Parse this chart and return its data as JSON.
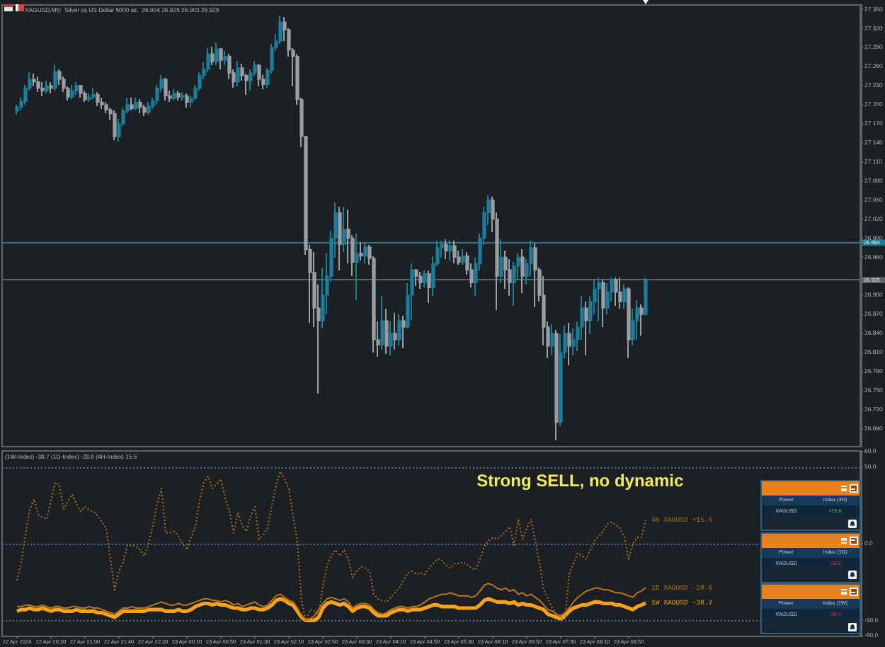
{
  "chart_data": [
    {
      "type": "candlestick",
      "title": "XAGUSD,M5:  Silver vs US Dollar 5000 oz.  26.904 26.925 26.903 26.925",
      "tick_labels": "y",
      "categories": [
        null,
        null,
        null,
        null,
        null,
        null,
        null,
        null,
        null,
        null,
        null,
        null,
        null,
        null,
        null,
        null,
        null,
        null,
        null,
        null,
        null,
        null,
        null,
        null,
        null,
        null,
        null,
        null,
        null,
        null,
        null,
        null,
        null,
        null,
        null,
        null,
        null,
        null,
        null,
        null,
        null,
        null,
        null,
        null,
        null,
        null,
        null,
        null,
        null,
        null,
        null,
        null,
        null,
        null,
        null,
        null,
        null,
        null,
        null,
        null,
        null,
        null,
        null,
        null,
        null,
        null,
        null,
        null,
        null,
        null,
        null,
        null,
        null,
        null,
        null,
        null,
        null,
        null,
        null,
        null,
        null,
        null,
        null,
        null,
        null,
        null,
        null,
        null,
        null,
        null,
        null,
        null,
        null,
        null,
        null,
        null,
        null,
        null,
        null,
        null,
        null,
        null,
        null,
        null,
        null,
        null,
        null,
        null,
        null,
        null,
        null,
        null,
        null,
        null,
        null,
        null,
        null,
        null,
        null,
        null,
        null,
        null,
        null,
        null,
        null,
        null,
        null,
        null,
        null,
        null,
        null,
        null,
        null,
        null,
        null,
        null,
        null,
        null,
        null,
        null,
        null,
        null,
        null,
        null,
        null,
        null,
        null,
        null,
        null,
        null,
        null,
        null,
        null,
        null,
        null,
        null,
        null,
        null,
        null,
        null,
        null,
        null,
        null,
        null,
        null,
        null,
        null,
        null,
        null,
        null,
        null,
        null,
        null,
        null,
        null,
        null,
        null,
        null,
        null,
        null,
        null,
        null,
        null,
        null,
        null,
        null,
        null,
        null,
        null,
        null,
        null,
        null,
        null,
        null,
        null,
        null,
        null,
        null,
        null,
        null,
        null,
        null
      ],
      "ohlc": [
        null,
        null,
        null,
        [
          27.19,
          27.2,
          27.185,
          27.196
        ],
        [
          27.196,
          27.21,
          27.192,
          27.205
        ],
        [
          27.205,
          27.232,
          27.2,
          27.226
        ],
        [
          27.226,
          27.252,
          27.222,
          27.24
        ],
        [
          27.24,
          27.25,
          27.228,
          27.236
        ],
        [
          27.236,
          27.244,
          27.22,
          27.226
        ],
        [
          27.226,
          27.236,
          27.214,
          27.222
        ],
        [
          27.222,
          27.238,
          27.218,
          27.23
        ],
        [
          27.23,
          27.236,
          27.218,
          27.226
        ],
        [
          27.226,
          27.262,
          27.222,
          27.252
        ],
        [
          27.252,
          27.256,
          27.232,
          27.24
        ],
        [
          27.24,
          27.244,
          27.22,
          27.226
        ],
        [
          27.226,
          27.23,
          27.206,
          27.212
        ],
        [
          27.212,
          27.232,
          27.208,
          27.222
        ],
        [
          27.222,
          27.236,
          27.216,
          27.23
        ],
        [
          27.23,
          27.232,
          27.212,
          27.218
        ],
        [
          27.218,
          27.222,
          27.204,
          27.208
        ],
        [
          27.208,
          27.218,
          27.204,
          27.212
        ],
        [
          27.212,
          27.226,
          27.208,
          27.216
        ],
        [
          27.216,
          27.22,
          27.198,
          27.204
        ],
        [
          27.204,
          27.21,
          27.194,
          27.2
        ],
        [
          27.2,
          27.204,
          27.186,
          27.192
        ],
        [
          27.192,
          27.196,
          27.176,
          27.186
        ],
        [
          27.186,
          27.19,
          27.145,
          27.15
        ],
        [
          27.15,
          27.178,
          27.143,
          27.17
        ],
        [
          27.17,
          27.196,
          27.166,
          27.19
        ],
        [
          27.19,
          27.212,
          27.186,
          27.2
        ],
        [
          27.2,
          27.21,
          27.19,
          27.194
        ],
        [
          27.194,
          27.212,
          27.19,
          27.204
        ],
        [
          27.204,
          27.208,
          27.186,
          27.196
        ],
        [
          27.196,
          27.2,
          27.182,
          27.188
        ],
        [
          27.188,
          27.204,
          27.184,
          27.198
        ],
        [
          27.198,
          27.212,
          27.194,
          27.206
        ],
        [
          27.206,
          27.232,
          27.2,
          27.226
        ],
        [
          27.226,
          27.246,
          27.22,
          27.24
        ],
        [
          27.24,
          27.242,
          27.206,
          27.214
        ],
        [
          27.214,
          27.222,
          27.204,
          27.21
        ],
        [
          27.21,
          27.224,
          27.206,
          27.218
        ],
        [
          27.218,
          27.222,
          27.206,
          27.212
        ],
        [
          27.212,
          27.22,
          27.206,
          27.214
        ],
        [
          27.214,
          27.218,
          27.196,
          27.204
        ],
        [
          27.204,
          27.214,
          27.196,
          27.21
        ],
        [
          27.21,
          27.232,
          27.206,
          27.226
        ],
        [
          27.226,
          27.252,
          27.222,
          27.246
        ],
        [
          27.246,
          27.266,
          27.24,
          27.256
        ],
        [
          27.256,
          27.288,
          27.252,
          27.28
        ],
        [
          27.28,
          27.292,
          27.262,
          27.268
        ],
        [
          27.268,
          27.297,
          27.262,
          27.288
        ],
        [
          27.288,
          27.29,
          27.256,
          27.27
        ],
        [
          27.27,
          27.284,
          27.262,
          27.276
        ],
        [
          27.276,
          27.28,
          27.24,
          27.25
        ],
        [
          27.25,
          27.256,
          27.226,
          27.236
        ],
        [
          27.236,
          27.27,
          27.23,
          27.258
        ],
        [
          27.258,
          27.264,
          27.238,
          27.246
        ],
        [
          27.246,
          27.25,
          27.216,
          27.238
        ],
        [
          27.238,
          27.256,
          27.222,
          27.25
        ],
        [
          27.25,
          27.268,
          27.244,
          27.262
        ],
        [
          27.262,
          27.264,
          27.23,
          27.24
        ],
        [
          27.24,
          27.246,
          27.224,
          27.232
        ],
        [
          27.232,
          27.258,
          27.226,
          27.254
        ],
        [
          27.254,
          27.296,
          27.25,
          27.29
        ],
        [
          27.29,
          27.312,
          27.284,
          27.3
        ],
        [
          27.3,
          27.341,
          27.296,
          27.33
        ],
        [
          27.33,
          27.338,
          27.3,
          27.318
        ],
        [
          27.318,
          27.32,
          27.276,
          27.286
        ],
        [
          27.286,
          27.29,
          27.228,
          27.276
        ],
        [
          27.276,
          27.28,
          27.2,
          27.208
        ],
        [
          27.208,
          27.212,
          27.134,
          27.15
        ],
        [
          27.15,
          27.152,
          26.963,
          26.972
        ],
        [
          26.972,
          26.98,
          26.856,
          26.936
        ],
        [
          26.936,
          26.968,
          26.851,
          26.88
        ],
        [
          26.88,
          26.917,
          26.745,
          26.86
        ],
        [
          26.86,
          26.944,
          26.848,
          26.9
        ],
        [
          26.9,
          26.965,
          26.87,
          26.93
        ],
        [
          26.93,
          27.002,
          26.922,
          26.99
        ],
        [
          26.99,
          27.046,
          26.96,
          27.03
        ],
        [
          27.03,
          27.04,
          26.94,
          26.98
        ],
        [
          26.98,
          27.04,
          26.968,
          27.004
        ],
        [
          27.004,
          27.034,
          26.95,
          26.99
        ],
        [
          26.99,
          26.996,
          26.93,
          26.952
        ],
        [
          26.952,
          26.998,
          26.892,
          26.966
        ],
        [
          26.966,
          26.983,
          26.954,
          26.962
        ],
        [
          26.962,
          26.983,
          26.95,
          26.976
        ],
        [
          26.976,
          26.98,
          26.947,
          26.958
        ],
        [
          26.958,
          26.961,
          26.811,
          26.83
        ],
        [
          26.83,
          26.86,
          26.804,
          26.822
        ],
        [
          26.822,
          26.899,
          26.815,
          26.86
        ],
        [
          26.86,
          26.88,
          26.808,
          26.82
        ],
        [
          26.82,
          26.86,
          26.806,
          26.84
        ],
        [
          26.84,
          26.873,
          26.815,
          26.83
        ],
        [
          26.83,
          26.87,
          26.82,
          26.86
        ],
        [
          26.86,
          26.868,
          26.816,
          26.85
        ],
        [
          26.85,
          26.92,
          26.848,
          26.9
        ],
        [
          26.9,
          26.95,
          26.862,
          26.94
        ],
        [
          26.94,
          26.942,
          26.915,
          26.93
        ],
        [
          26.93,
          26.936,
          26.91,
          26.92
        ],
        [
          26.92,
          26.939,
          26.912,
          26.934
        ],
        [
          26.934,
          26.94,
          26.888,
          26.912
        ],
        [
          26.912,
          26.961,
          26.9,
          26.95
        ],
        [
          26.95,
          26.987,
          26.946,
          26.975
        ],
        [
          26.975,
          26.987,
          26.96,
          26.98
        ],
        [
          26.98,
          26.989,
          26.958,
          26.97
        ],
        [
          26.97,
          26.986,
          26.954,
          26.978
        ],
        [
          26.978,
          26.985,
          26.95,
          26.96
        ],
        [
          26.96,
          26.97,
          26.947,
          26.952
        ],
        [
          26.952,
          26.972,
          26.948,
          26.962
        ],
        [
          26.962,
          26.968,
          26.932,
          26.94
        ],
        [
          26.94,
          26.95,
          26.912,
          26.92
        ],
        [
          26.92,
          26.96,
          26.9,
          26.95
        ],
        [
          26.95,
          26.998,
          26.94,
          26.99
        ],
        [
          26.99,
          27.04,
          26.98,
          27.03
        ],
        [
          27.03,
          27.057,
          27.01,
          27.05
        ],
        [
          27.05,
          27.055,
          27.0,
          27.02
        ],
        [
          27.02,
          27.031,
          26.877,
          26.93
        ],
        [
          26.93,
          26.988,
          26.92,
          26.96
        ],
        [
          26.96,
          26.97,
          26.91,
          26.94
        ],
        [
          26.94,
          26.958,
          26.9,
          26.92
        ],
        [
          26.92,
          26.952,
          26.884,
          26.946
        ],
        [
          26.946,
          26.966,
          26.926,
          26.96
        ],
        [
          26.96,
          26.972,
          26.904,
          26.93
        ],
        [
          26.93,
          26.958,
          26.918,
          26.95
        ],
        [
          26.95,
          26.987,
          26.93,
          26.975
        ],
        [
          26.975,
          26.982,
          26.881,
          26.94
        ],
        [
          26.94,
          26.944,
          26.89,
          26.9
        ],
        [
          26.9,
          26.93,
          26.82,
          26.85
        ],
        [
          26.85,
          26.86,
          26.8,
          26.82
        ],
        [
          26.82,
          26.855,
          26.805,
          26.84
        ],
        [
          26.84,
          26.845,
          26.672,
          26.7
        ],
        [
          26.7,
          26.84,
          26.695,
          26.81
        ],
        [
          26.81,
          26.852,
          26.8,
          26.84
        ],
        [
          26.84,
          26.857,
          26.79,
          26.82
        ],
        [
          26.82,
          26.848,
          26.806,
          26.83
        ],
        [
          26.83,
          26.86,
          26.812,
          26.85
        ],
        [
          26.85,
          26.899,
          26.83,
          26.88
        ],
        [
          26.88,
          26.89,
          26.806,
          26.86
        ],
        [
          26.86,
          26.9,
          26.84,
          26.89
        ],
        [
          26.89,
          26.925,
          26.87,
          26.91
        ],
        [
          26.91,
          26.928,
          26.86,
          26.92
        ],
        [
          26.92,
          26.926,
          26.85,
          26.88
        ],
        [
          26.88,
          26.92,
          26.87,
          26.905
        ],
        [
          26.905,
          26.929,
          26.89,
          26.925
        ],
        [
          26.925,
          26.928,
          26.884,
          26.905
        ],
        [
          26.905,
          26.929,
          26.88,
          26.89
        ],
        [
          26.89,
          26.918,
          26.88,
          26.91
        ],
        [
          26.91,
          26.912,
          26.8,
          26.83
        ],
        [
          26.83,
          26.88,
          26.82,
          26.86
        ],
        [
          26.86,
          26.893,
          26.83,
          26.88
        ],
        [
          26.88,
          26.885,
          26.836,
          26.87
        ],
        [
          26.87,
          26.929,
          26.868,
          26.925
        ],
        null,
        null,
        null,
        null,
        null,
        null,
        null,
        null,
        null,
        null,
        null,
        null,
        null,
        null,
        null,
        null,
        null,
        null,
        null,
        null,
        null,
        null,
        null,
        null,
        null,
        null,
        null,
        null,
        null,
        null,
        null,
        null,
        null,
        null,
        null,
        null,
        null,
        null,
        null,
        null,
        null,
        null,
        null,
        null,
        null,
        null,
        null,
        null,
        null,
        null
      ],
      "colors": [
        null,
        null,
        null,
        "#1c7d99",
        "#1c7d99",
        "#1c7d99",
        "#1c7d99",
        "#9a9ea2",
        "#9a9ea2",
        "#9a9ea2",
        "#1c7d99",
        "#9a9ea2",
        "#1c7d99",
        "#9a9ea2",
        "#9a9ea2",
        "#9a9ea2",
        "#1c7d99",
        "#1c7d99",
        "#9a9ea2",
        "#9a9ea2",
        "#1c7d99",
        "#1c7d99",
        "#9a9ea2",
        "#9a9ea2",
        "#9a9ea2",
        "#9a9ea2",
        "#9a9ea2",
        "#1c7d99",
        "#1c7d99",
        "#1c7d99",
        "#9a9ea2",
        "#1c7d99",
        "#9a9ea2",
        "#9a9ea2",
        "#1c7d99",
        "#1c7d99",
        "#1c7d99",
        "#1c7d99",
        "#9a9ea2",
        "#9a9ea2",
        "#1c7d99",
        "#9a9ea2",
        "#1c7d99",
        "#9a9ea2",
        "#1c7d99",
        "#1c7d99",
        "#1c7d99",
        "#1c7d99",
        "#1c7d99",
        "#9a9ea2",
        "#1c7d99",
        "#9a9ea2",
        "#1c7d99",
        "#9a9ea2",
        "#9a9ea2",
        "#1c7d99",
        "#9a9ea2",
        "#9a9ea2",
        "#1c7d99",
        "#1c7d99",
        "#9a9ea2",
        "#9a9ea2",
        "#1c7d99",
        "#1c7d99",
        "#1c7d99",
        "#1c7d99",
        "#9a9ea2",
        "#9a9ea2",
        "#9a9ea2",
        "#9a9ea2",
        "#9a9ea2",
        "#9a9ea2",
        "#9a9ea2",
        "#9a9ea2",
        "#9a9ea2",
        "#1c7d99",
        "#1c7d99",
        "#1c7d99",
        "#1c7d99",
        "#9a9ea2",
        "#1c7d99",
        "#9a9ea2",
        "#9a9ea2",
        "#1c7d99",
        "#9a9ea2",
        "#1c7d99",
        "#9a9ea2",
        "#9a9ea2",
        "#9a9ea2",
        "#1c7d99",
        "#9a9ea2",
        "#1c7d99",
        "#9a9ea2",
        "#1c7d99",
        "#9a9ea2",
        "#1c7d99",
        "#1c7d99",
        "#9a9ea2",
        "#9a9ea2",
        "#1c7d99",
        "#9a9ea2",
        "#1c7d99",
        "#1c7d99",
        "#1c7d99",
        "#9a9ea2",
        "#1c7d99",
        "#9a9ea2",
        "#9a9ea2",
        "#1c7d99",
        "#9a9ea2",
        "#9a9ea2",
        "#1c7d99",
        "#1c7d99",
        "#1c7d99",
        "#1c7d99",
        "#9a9ea2",
        "#9a9ea2",
        "#1c7d99",
        "#9a9ea2",
        "#9a9ea2",
        "#1c7d99",
        "#1c7d99",
        "#9a9ea2",
        "#1c7d99",
        "#1c7d99",
        "#9a9ea2",
        "#9a9ea2",
        "#9a9ea2",
        "#9a9ea2",
        "#1c7d99",
        "#9a9ea2",
        "#1c7d99",
        "#1c7d99",
        "#9a9ea2",
        "#1c7d99",
        "#1c7d99",
        "#1c7d99",
        "#9a9ea2",
        "#1c7d99",
        "#1c7d99",
        "#1c7d99",
        "#9a9ea2",
        "#1c7d99",
        "#1c7d99",
        "#9a9ea2",
        "#9a9ea2",
        "#1c7d99",
        "#9a9ea2",
        "#1c7d99",
        "#1c7d99",
        "#9a9ea2",
        "#1c7d99",
        null,
        null,
        null,
        null,
        null,
        null,
        null,
        null,
        null,
        null,
        null,
        null,
        null,
        null,
        null,
        null,
        null,
        null,
        null,
        null,
        null,
        null,
        null,
        null,
        null,
        null,
        null,
        null,
        null,
        null,
        null,
        null,
        null,
        null,
        null,
        null,
        null,
        null,
        null,
        null,
        null,
        null,
        null,
        null,
        null,
        null,
        null,
        null,
        null,
        null
      ],
      "ylim": [
        26.664,
        27.357
      ],
      "yticks": [
        {
          "value": 26.69,
          "label": "26.690"
        },
        {
          "value": 26.72,
          "label": "26.720"
        },
        {
          "value": 26.75,
          "label": "26.750"
        },
        {
          "value": 26.78,
          "label": "26.780"
        },
        {
          "value": 26.81,
          "label": "26.810"
        },
        {
          "value": 26.84,
          "label": "26.840"
        },
        {
          "value": 26.87,
          "label": "26.870"
        },
        {
          "value": 26.9,
          "label": "26.900"
        },
        {
          "value": 26.96,
          "label": "26.960"
        },
        {
          "value": 26.99,
          "label": "26.990"
        },
        {
          "value": 27.02,
          "label": "27.020"
        },
        {
          "value": 27.05,
          "label": "27.050"
        },
        {
          "value": 27.08,
          "label": "27.080"
        },
        {
          "value": 27.11,
          "label": "27.110"
        },
        {
          "value": 27.14,
          "label": "27.140"
        },
        {
          "value": 27.17,
          "label": "27.170"
        },
        {
          "value": 27.2,
          "label": "27.200"
        },
        {
          "value": 27.23,
          "label": "27.230"
        },
        {
          "value": 27.26,
          "label": "27.260"
        },
        {
          "value": 27.29,
          "label": "27.290"
        },
        {
          "value": 27.32,
          "label": "27.320"
        },
        {
          "value": 27.35,
          "label": "27.350"
        }
      ],
      "ref_lines": [
        {
          "axis": "y",
          "value": 26.984,
          "label": "26.984",
          "color": "#1c7d99"
        },
        {
          "axis": "y",
          "value": 26.925,
          "label": "26.925",
          "color": "#5c6166"
        }
      ]
    },
    {
      "type": "line",
      "subtitle": "(1W-Index) -38.7 (1D-Index) -28.6 (4H-Index) 15.6",
      "categories": [
        null,
        null,
        null,
        "22 Apr 2024",
        null,
        null,
        null,
        null,
        null,
        null,
        null,
        "22 Apr 20:20",
        null,
        null,
        null,
        null,
        null,
        null,
        null,
        "22 Apr 21:00",
        null,
        null,
        null,
        null,
        null,
        null,
        null,
        "22 Apr 21:40",
        null,
        null,
        null,
        null,
        null,
        null,
        null,
        "22 Apr 22:20",
        null,
        null,
        null,
        null,
        null,
        null,
        null,
        "23 Apr 00:10",
        null,
        null,
        null,
        null,
        null,
        null,
        null,
        "23 Apr 00:50",
        null,
        null,
        null,
        null,
        null,
        null,
        null,
        "23 Apr 01:30",
        null,
        null,
        null,
        null,
        null,
        null,
        null,
        "23 Apr 02:10",
        null,
        null,
        null,
        null,
        null,
        null,
        null,
        "23 Apr 02:50",
        null,
        null,
        null,
        null,
        null,
        null,
        null,
        "23 Apr 03:30",
        null,
        null,
        null,
        null,
        null,
        null,
        null,
        "23 Apr 04:10",
        null,
        null,
        null,
        null,
        null,
        null,
        null,
        "23 Apr 04:50",
        null,
        null,
        null,
        null,
        null,
        null,
        null,
        "23 Apr 05:30",
        null,
        null,
        null,
        null,
        null,
        null,
        null,
        "23 Apr 06:10",
        null,
        null,
        null,
        null,
        null,
        null,
        null,
        "23 Apr 06:50",
        null,
        null,
        null,
        null,
        null,
        null,
        null,
        "23 Apr 07:30",
        null,
        null,
        null,
        null,
        null,
        null,
        null,
        "23 Apr 08:10",
        null,
        null,
        null,
        null,
        null,
        null,
        null,
        "23 Apr 08:50",
        null,
        null,
        null,
        null,
        null,
        null,
        null,
        null,
        null,
        null,
        null,
        null,
        null,
        null,
        null,
        null,
        null,
        null,
        null,
        null,
        null,
        null,
        null,
        null,
        null,
        null,
        null,
        null,
        null,
        null,
        null,
        null,
        null,
        null,
        null,
        null,
        null,
        null,
        null,
        null,
        null,
        null,
        null,
        null,
        null,
        null,
        null,
        null,
        null,
        null,
        null,
        null,
        null,
        null
      ],
      "series": [
        {
          "name": "4H XAGUSD +15.6",
          "color": "#a8731e",
          "line_style": "dotted",
          "values": [
            null,
            null,
            null,
            -24,
            -12,
            6,
            22,
            29,
            19,
            17,
            16,
            28,
            40,
            38,
            22,
            28,
            32,
            26,
            21,
            24,
            22,
            21,
            18,
            14,
            10,
            -10,
            -30,
            -18,
            -12,
            -1,
            -1,
            -2,
            -4,
            -8,
            0,
            12,
            26,
            36,
            7,
            7,
            8,
            5,
            0,
            -4,
            4,
            11,
            28,
            40,
            44,
            36,
            39,
            42,
            30,
            21,
            7,
            20,
            12,
            8,
            18,
            24,
            3,
            6,
            10,
            25,
            38,
            47,
            42,
            36,
            18,
            2,
            -38,
            -50,
            -43,
            -44,
            -46,
            -28,
            -14,
            -8,
            -4,
            -8,
            -4,
            -10,
            -22,
            -18,
            -15,
            -16,
            -18,
            -33,
            -36,
            -37,
            -38,
            -35,
            -32,
            -29,
            -24,
            -19,
            -18,
            -20,
            -19,
            -20,
            -16,
            -13,
            -10,
            -11,
            -14,
            -16,
            -13,
            -13,
            -12,
            -14,
            -16,
            -17,
            -10,
            -2,
            2,
            4,
            3,
            5,
            8,
            11,
            -1,
            16,
            3,
            10,
            16,
            2,
            -13,
            -30,
            -36,
            -42,
            -46,
            -48,
            -49,
            -20,
            -13,
            -6,
            -8,
            -10,
            -4,
            2,
            5,
            8,
            13,
            14,
            12,
            10,
            4,
            -10,
            0,
            4,
            4,
            15.6,
            null,
            null,
            null,
            null,
            null,
            null,
            null,
            null,
            null,
            null,
            null,
            null,
            null,
            null,
            null,
            null,
            null,
            null,
            null,
            null,
            null,
            null,
            null,
            null,
            null,
            null,
            null,
            null,
            null,
            null,
            null,
            null,
            null,
            null,
            null,
            null,
            null,
            null,
            null,
            null,
            null,
            null,
            null,
            null,
            null,
            null,
            null,
            null,
            null,
            null
          ]
        },
        {
          "name": "1D XAGUSD -28.6",
          "color": "#b7781a",
          "values": [
            null,
            null,
            null,
            -41,
            -41,
            -40,
            -40,
            -41,
            -41,
            -40,
            -41,
            -42,
            -41,
            -41,
            -42,
            -42,
            -41,
            -41,
            -42,
            -42,
            -41,
            -42,
            -42,
            -43,
            -44,
            -45,
            -46,
            -44,
            -42,
            -42,
            -41,
            -42,
            -42,
            -42,
            -41,
            -40,
            -39,
            -38,
            -39,
            -40,
            -40,
            -39,
            -40,
            -40,
            -39,
            -38,
            -37,
            -36,
            -36,
            -37,
            -37,
            -38,
            -37,
            -38,
            -40,
            -39,
            -41,
            -40,
            -39,
            -38,
            -40,
            -41,
            -40,
            -37,
            -34,
            -33,
            -35,
            -37,
            -38,
            -42,
            -47,
            -50,
            -49,
            -47,
            -43,
            -39,
            -36,
            -35,
            -36,
            -37,
            -36,
            -38,
            -42,
            -40,
            -39,
            -39,
            -40,
            -43,
            -45,
            -46,
            -45,
            -43,
            -42,
            -41,
            -41,
            -42,
            -41,
            -41,
            -40,
            -38,
            -36,
            -35,
            -34,
            -33,
            -33,
            -32,
            -33,
            -34,
            -34,
            -34,
            -35,
            -34,
            -31,
            -27,
            -26,
            -27,
            -29,
            -30,
            -29,
            -31,
            -30,
            -33,
            -32,
            -34,
            -33,
            -35,
            -37,
            -40,
            -43,
            -44,
            -46,
            -47,
            -45,
            -42,
            -38,
            -35,
            -33,
            -31,
            -30,
            -29,
            -29,
            -30,
            -30,
            -31,
            -32,
            -32,
            -33,
            -34,
            -35,
            -32,
            -31,
            -28.6,
            null,
            null,
            null,
            null,
            null,
            null,
            null,
            null,
            null,
            null,
            null,
            null,
            null,
            null,
            null,
            null,
            null,
            null,
            null,
            null,
            null,
            null,
            null,
            null,
            null,
            null,
            null,
            null,
            null,
            null,
            null,
            null,
            null,
            null,
            null,
            null,
            null,
            null,
            null,
            null,
            null,
            null,
            null,
            null,
            null,
            null,
            null,
            null,
            null,
            null
          ]
        },
        {
          "name": "1W XAGUSD -38.7",
          "color": "#f5a11c",
          "values": [
            null,
            null,
            null,
            -44,
            -43,
            -43,
            -42,
            -43,
            -43,
            -42,
            -43,
            -44,
            -43,
            -43,
            -44,
            -44,
            -44,
            -43,
            -44,
            -44,
            -44,
            -44,
            -45,
            -45,
            -46,
            -47,
            -48,
            -46,
            -44,
            -44,
            -44,
            -44,
            -44,
            -44,
            -43,
            -43,
            -43,
            -43,
            -44,
            -44,
            -44,
            -43,
            -44,
            -44,
            -43,
            -41,
            -40,
            -39,
            -39,
            -40,
            -39,
            -40,
            -40,
            -41,
            -42,
            -42,
            -43,
            -43,
            -42,
            -42,
            -43,
            -43,
            -42,
            -40,
            -37,
            -36,
            -37,
            -39,
            -40,
            -44,
            -48,
            -50,
            -50,
            -50,
            -48,
            -42,
            -39,
            -38,
            -39,
            -40,
            -39,
            -41,
            -44,
            -42,
            -41,
            -41,
            -42,
            -45,
            -47,
            -47,
            -47,
            -45,
            -44,
            -43,
            -43,
            -44,
            -43,
            -43,
            -43,
            -42,
            -41,
            -40,
            -40,
            -41,
            -41,
            -41,
            -41,
            -42,
            -42,
            -42,
            -42,
            -42,
            -40,
            -37,
            -36,
            -37,
            -38,
            -38,
            -38,
            -39,
            -38,
            -40,
            -39,
            -40,
            -40,
            -41,
            -42,
            -43,
            -46,
            -47,
            -48,
            -49,
            -47,
            -44,
            -42,
            -41,
            -40,
            -40,
            -39,
            -38,
            -38,
            -39,
            -39,
            -39,
            -40,
            -40,
            -41,
            -42,
            -43,
            -41,
            -40,
            -38.7,
            null,
            null,
            null,
            null,
            null,
            null,
            null,
            null,
            null,
            null,
            null,
            null,
            null,
            null,
            null,
            null,
            null,
            null,
            null,
            null,
            null,
            null,
            null,
            null,
            null,
            null,
            null,
            null,
            null,
            null,
            null,
            null,
            null,
            null,
            null,
            null,
            null,
            null,
            null,
            null,
            null,
            null,
            null,
            null,
            null,
            null,
            null,
            null,
            null,
            null
          ]
        }
      ],
      "ylim": [
        -60,
        60
      ],
      "yticks": [
        {
          "value": 60,
          "label": "60.0"
        },
        {
          "value": 50,
          "label": "50.0"
        },
        {
          "value": 0,
          "label": "0.0"
        },
        {
          "value": -50,
          "label": "-50.0"
        },
        {
          "value": -60,
          "label": "-60.0"
        }
      ],
      "ref_lines": [
        {
          "axis": "y",
          "value": 50,
          "color": "#4f7488",
          "line_style": "dotted"
        },
        {
          "axis": "y",
          "value": 0,
          "color": "#4f7488",
          "line_style": "dotted"
        },
        {
          "axis": "y",
          "value": -50,
          "color": "#4f7488",
          "line_style": "dotted"
        }
      ],
      "annotations": [
        "Strong SELL, no dynamic",
        "Power",
        "Index (4H)",
        "XAGUSD",
        "+15.6",
        "Power",
        "Index (1D)",
        "XAGUSD",
        "-28.6",
        "Power",
        "Index (1W)",
        "XAGUSD",
        "-38.7"
      ]
    }
  ]
}
